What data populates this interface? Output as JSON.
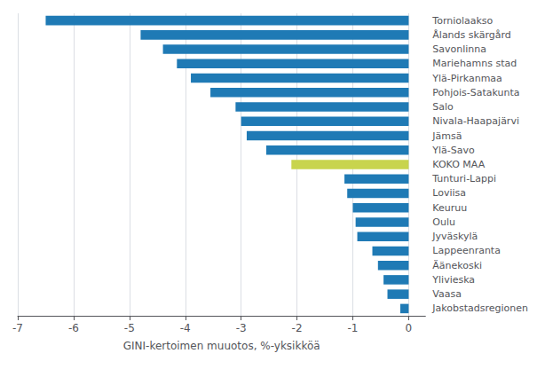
{
  "chart_data": {
    "type": "bar",
    "orientation": "horizontal",
    "categories": [
      "Torniolaakso",
      "Ålands skärgård",
      "Savonlinna",
      "Mariehamns stad",
      "Ylä-Pirkanmaa",
      "Pohjois-Satakunta",
      "Salo",
      "Nivala-Haapajärvi",
      "Jämsä",
      "Ylä-Savo",
      "KOKO MAA",
      "Tunturi-Lappi",
      "Loviisa",
      "Keuruu",
      "Oulu",
      "Jyväskylä",
      "Lappeenranta",
      "Äänekoski",
      "Ylivieska",
      "Vaasa",
      "Jakobstadsregionen"
    ],
    "values": [
      -6.5,
      -4.8,
      -4.4,
      -4.15,
      -3.9,
      -3.55,
      -3.1,
      -3.0,
      -2.9,
      -2.55,
      -2.1,
      -1.15,
      -1.1,
      -1.0,
      -0.95,
      -0.92,
      -0.65,
      -0.55,
      -0.45,
      -0.38,
      -0.15
    ],
    "colors": [
      "#1f7ab5",
      "#1f7ab5",
      "#1f7ab5",
      "#1f7ab5",
      "#1f7ab5",
      "#1f7ab5",
      "#1f7ab5",
      "#1f7ab5",
      "#1f7ab5",
      "#1f7ab5",
      "#c8d44e",
      "#1f7ab5",
      "#1f7ab5",
      "#1f7ab5",
      "#1f7ab5",
      "#1f7ab5",
      "#1f7ab5",
      "#1f7ab5",
      "#1f7ab5",
      "#1f7ab5",
      "#1f7ab5"
    ],
    "xlabel": "GINI-kertoimen muuotos, %-yksikköä",
    "xlim": [
      -7,
      0.3
    ],
    "xticks": [
      -7,
      -6,
      -5,
      -4,
      -3,
      -2,
      -1,
      0
    ],
    "grid": true
  }
}
